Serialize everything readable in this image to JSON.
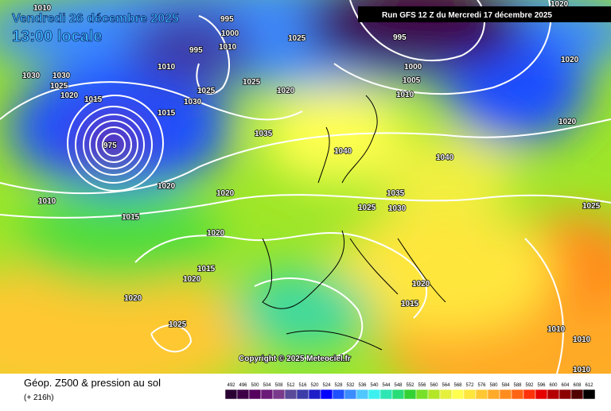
{
  "header": {
    "date": "Vendredi 26 décembre 2025",
    "time": "13:00 locale",
    "run": "Run GFS 12 Z du Mercredi 17 décembre 2025"
  },
  "copyright": "Copyright © 2025 Meteociel.fr",
  "footer": {
    "title": "Géop. Z500 & pression au sol",
    "lead": "(+ 216h)"
  },
  "legend": {
    "labels": [
      492,
      496,
      500,
      504,
      508,
      512,
      516,
      520,
      524,
      528,
      532,
      536,
      540,
      544,
      548,
      552,
      556,
      560,
      564,
      568,
      572,
      576,
      580,
      584,
      588,
      592,
      596,
      600,
      604,
      608,
      612
    ],
    "colors": [
      "#2a0033",
      "#3d0047",
      "#55005e",
      "#6b1a78",
      "#7a3a8c",
      "#5a4a9a",
      "#3c3ca8",
      "#1e1ec8",
      "#0000ff",
      "#1e50ff",
      "#3c8cff",
      "#50c8ff",
      "#3cf0f0",
      "#2ee6b4",
      "#28dc78",
      "#32d232",
      "#78e028",
      "#b4e628",
      "#e6f03c",
      "#ffff50",
      "#ffe63c",
      "#ffc832",
      "#ffaa28",
      "#ff8c1e",
      "#ff6414",
      "#ff320a",
      "#e60000",
      "#b40000",
      "#8c0000",
      "#500000",
      "#000000"
    ]
  },
  "isobar_labels": [
    "1010",
    "995",
    "1000",
    "1010",
    "1025",
    "995",
    "1010",
    "1030",
    "1030",
    "1025",
    "1020",
    "1015",
    "1025",
    "1020",
    "1030",
    "1025",
    "1015",
    "1035",
    "1040",
    "1040",
    "1020",
    "1020",
    "1010",
    "1015",
    "1020",
    "1015",
    "1020",
    "1020",
    "1025",
    "1035",
    "1030",
    "1025",
    "1020",
    "1015",
    "1010",
    "1010",
    "1010",
    "1025",
    "1020",
    "1020",
    "995",
    "1000",
    "1005",
    "1010",
    "1020",
    "975"
  ]
}
